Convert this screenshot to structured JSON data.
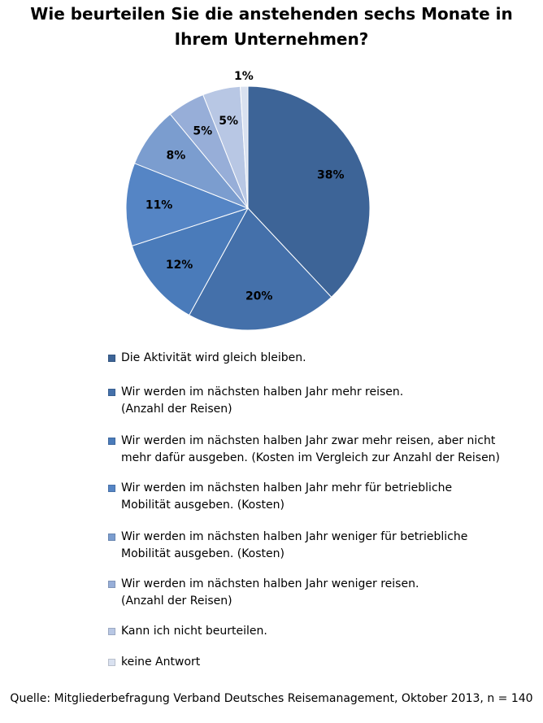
{
  "chart_data": {
    "type": "pie",
    "title": "Wie beurteilen Sie die anstehenden sechs Monate in Ihrem Unternehmen?",
    "categories": [
      "Die Aktivität wird gleich bleiben.",
      "Wir werden im nächsten halben Jahr mehr reisen.\n(Anzahl der Reisen)",
      "Wir werden im nächsten halben Jahr zwar mehr reisen, aber nicht\nmehr dafür ausgeben. (Kosten im Vergleich zur Anzahl der Reisen)",
      "Wir werden im nächsten halben Jahr mehr für betriebliche\nMobilität ausgeben. (Kosten)",
      "Wir werden im nächsten halben Jahr weniger für betriebliche\nMobilität ausgeben. (Kosten)",
      "Wir werden im nächsten halben Jahr weniger reisen.\n(Anzahl der Reisen)",
      "Kann ich nicht beurteilen.",
      "keine Antwort"
    ],
    "values": [
      38,
      20,
      12,
      11,
      8,
      5,
      5,
      1
    ],
    "data_labels": [
      "38%",
      "20%",
      "12%",
      "11%",
      "8%",
      "5%",
      "5%",
      "1%"
    ],
    "colors": [
      "#3D6497",
      "#4470AA",
      "#4A7BBA",
      "#5585C5",
      "#7B9DCF",
      "#97AED8",
      "#B8C7E4",
      "#D9E1F0"
    ],
    "legend_position": "bottom",
    "source": "Quelle: Mitgliederbefragung Verband Deutsches Reisemanagement, Oktober 2013, n = 140"
  }
}
